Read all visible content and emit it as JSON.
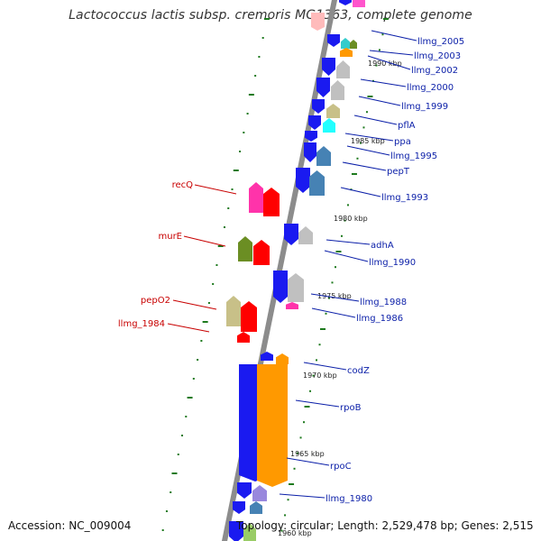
{
  "title": "Lactococcus lactis subsp. cremoris MG1363, complete genome",
  "footer": {
    "accession": "Accession: NC_009004",
    "topology": "Topology: circular; Length: 2,529,478 bp; Genes: 2,515"
  },
  "colors": {
    "backbone": "#8c8c8c",
    "forward_label": "#0a1ea8",
    "reverse_label": "#c80000",
    "tick": "#1e7a1e"
  },
  "kbp_labels": [
    "1990 kbp",
    "1985 kbp",
    "1980 kbp",
    "1975 kbp",
    "1970 kbp",
    "1965 kbp",
    "1960 kbp"
  ],
  "forward_labels": [
    "llmg_2005",
    "llmg_2003",
    "llmg_2002",
    "llmg_2000",
    "llmg_1999",
    "pflA",
    "ppa",
    "llmg_1995",
    "pepT",
    "llmg_1993",
    "adhA",
    "llmg_1990",
    "llmg_1988",
    "llmg_1986",
    "codZ",
    "rpoB",
    "rpoC",
    "llmg_1980"
  ],
  "reverse_labels": [
    "recQ",
    "murE",
    "pepO2",
    "llmg_1984"
  ]
}
